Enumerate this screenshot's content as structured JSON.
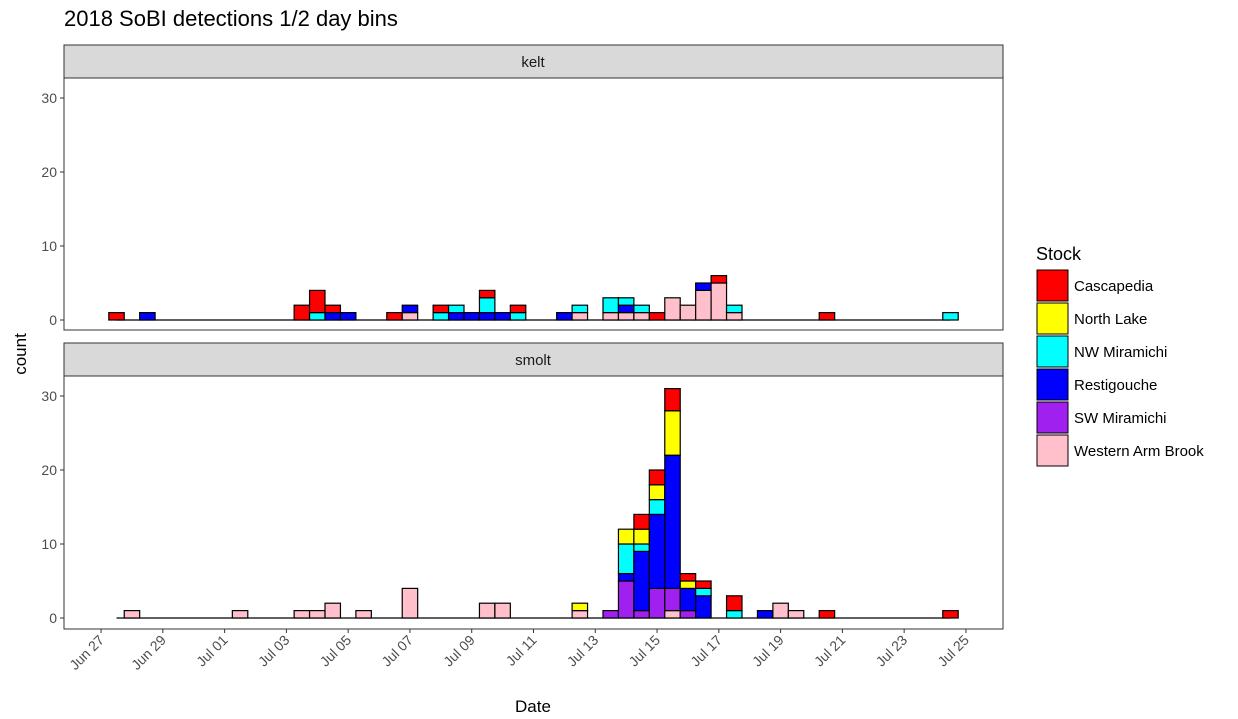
{
  "chart_data": {
    "type": "bar",
    "stacked": true,
    "title": "2018 SoBI detections 1/2 day bins",
    "xlabel": "Date",
    "ylabel": "count",
    "ylim": [
      0,
      32
    ],
    "y_ticks": [
      0,
      10,
      20,
      30
    ],
    "x_ticks": [
      "Jun 27",
      "Jun 29",
      "Jul 01",
      "Jul 03",
      "Jul 05",
      "Jul 07",
      "Jul 09",
      "Jul 11",
      "Jul 13",
      "Jul 15",
      "Jul 17",
      "Jul 19",
      "Jul 21",
      "Jul 23",
      "Jul 25"
    ],
    "x_tick_days": [
      0,
      2,
      4,
      6,
      8,
      10,
      12,
      14,
      16,
      18,
      20,
      22,
      24,
      26,
      28
    ],
    "bin_width_days": 0.5,
    "x_day0": "Jun 27",
    "x_range_days": [
      -1.2,
      29.2
    ],
    "grid": false,
    "legend": {
      "title": "Stock",
      "placement": "right",
      "entries": [
        "Cascapedia",
        "North Lake",
        "NW Miramichi",
        "Restigouche",
        "SW Miramichi",
        "Western Arm Brook"
      ]
    },
    "colors": {
      "Cascapedia": "#ff0000",
      "North Lake": "#ffff00",
      "NW Miramichi": "#00ffff",
      "Restigouche": "#0000ff",
      "SW Miramichi": "#a020f0",
      "Western Arm Brook": "#ffc0cb"
    },
    "stack_order": [
      "Western Arm Brook",
      "SW Miramichi",
      "Restigouche",
      "NW Miramichi",
      "North Lake",
      "Cascapedia"
    ],
    "panels": [
      {
        "label": "kelt",
        "bins": [
          {
            "x": 0.5,
            "counts": {
              "Cascapedia": 1
            }
          },
          {
            "x": 1.5,
            "counts": {
              "Restigouche": 1
            }
          },
          {
            "x": 6.5,
            "counts": {
              "Cascapedia": 2
            }
          },
          {
            "x": 7.0,
            "counts": {
              "NW Miramichi": 1,
              "Cascapedia": 3
            }
          },
          {
            "x": 7.5,
            "counts": {
              "Restigouche": 1,
              "Cascapedia": 1
            }
          },
          {
            "x": 8.0,
            "counts": {
              "Restigouche": 1
            }
          },
          {
            "x": 9.5,
            "counts": {
              "Cascapedia": 1
            }
          },
          {
            "x": 10.0,
            "counts": {
              "Western Arm Brook": 1,
              "Restigouche": 1
            }
          },
          {
            "x": 11.0,
            "counts": {
              "NW Miramichi": 1,
              "Cascapedia": 1
            }
          },
          {
            "x": 11.5,
            "counts": {
              "Restigouche": 1,
              "NW Miramichi": 1
            }
          },
          {
            "x": 12.0,
            "counts": {
              "Restigouche": 1
            }
          },
          {
            "x": 12.5,
            "counts": {
              "Restigouche": 1,
              "NW Miramichi": 2,
              "Cascapedia": 1
            }
          },
          {
            "x": 13.0,
            "counts": {
              "Restigouche": 1
            }
          },
          {
            "x": 13.5,
            "counts": {
              "NW Miramichi": 1,
              "Cascapedia": 1
            }
          },
          {
            "x": 15.0,
            "counts": {
              "Restigouche": 1
            }
          },
          {
            "x": 15.5,
            "counts": {
              "Western Arm Brook": 1,
              "NW Miramichi": 1
            }
          },
          {
            "x": 16.5,
            "counts": {
              "Western Arm Brook": 1,
              "NW Miramichi": 2
            }
          },
          {
            "x": 17.0,
            "counts": {
              "Western Arm Brook": 1,
              "Restigouche": 1,
              "NW Miramichi": 1
            }
          },
          {
            "x": 17.5,
            "counts": {
              "Western Arm Brook": 1,
              "NW Miramichi": 1
            }
          },
          {
            "x": 18.0,
            "counts": {
              "Cascapedia": 1
            }
          },
          {
            "x": 18.5,
            "counts": {
              "Western Arm Brook": 3
            }
          },
          {
            "x": 19.0,
            "counts": {
              "Western Arm Brook": 2
            }
          },
          {
            "x": 19.5,
            "counts": {
              "Western Arm Brook": 4,
              "Restigouche": 1
            }
          },
          {
            "x": 20.0,
            "counts": {
              "Western Arm Brook": 5,
              "Cascapedia": 1
            }
          },
          {
            "x": 20.5,
            "counts": {
              "Western Arm Brook": 1,
              "NW Miramichi": 1
            }
          },
          {
            "x": 23.5,
            "counts": {
              "Cascapedia": 1
            }
          },
          {
            "x": 27.5,
            "counts": {
              "NW Miramichi": 1
            }
          }
        ]
      },
      {
        "label": "smolt",
        "bins": [
          {
            "x": 1.0,
            "counts": {
              "Western Arm Brook": 1
            }
          },
          {
            "x": 4.5,
            "counts": {
              "Western Arm Brook": 1
            }
          },
          {
            "x": 6.5,
            "counts": {
              "Western Arm Brook": 1
            }
          },
          {
            "x": 7.0,
            "counts": {
              "Western Arm Brook": 1
            }
          },
          {
            "x": 7.5,
            "counts": {
              "Western Arm Brook": 2
            }
          },
          {
            "x": 8.5,
            "counts": {
              "Western Arm Brook": 1
            }
          },
          {
            "x": 10.0,
            "counts": {
              "Western Arm Brook": 4
            }
          },
          {
            "x": 12.5,
            "counts": {
              "Western Arm Brook": 2
            }
          },
          {
            "x": 13.0,
            "counts": {
              "Western Arm Brook": 2
            }
          },
          {
            "x": 15.5,
            "counts": {
              "Western Arm Brook": 1,
              "North Lake": 1
            }
          },
          {
            "x": 16.5,
            "counts": {
              "SW Miramichi": 1
            }
          },
          {
            "x": 17.0,
            "counts": {
              "SW Miramichi": 5,
              "Restigouche": 1,
              "NW Miramichi": 4,
              "North Lake": 2
            }
          },
          {
            "x": 17.5,
            "counts": {
              "SW Miramichi": 1,
              "Restigouche": 8,
              "NW Miramichi": 1,
              "North Lake": 2,
              "Cascapedia": 2
            }
          },
          {
            "x": 18.0,
            "counts": {
              "SW Miramichi": 4,
              "Restigouche": 10,
              "NW Miramichi": 2,
              "North Lake": 2,
              "Cascapedia": 2
            }
          },
          {
            "x": 18.5,
            "counts": {
              "Western Arm Brook": 1,
              "SW Miramichi": 3,
              "Restigouche": 18,
              "North Lake": 6,
              "Cascapedia": 3
            }
          },
          {
            "x": 19.0,
            "counts": {
              "SW Miramichi": 1,
              "Restigouche": 3,
              "North Lake": 1,
              "Cascapedia": 1
            }
          },
          {
            "x": 19.5,
            "counts": {
              "Restigouche": 3,
              "NW Miramichi": 1,
              "Cascapedia": 1
            }
          },
          {
            "x": 20.5,
            "counts": {
              "NW Miramichi": 1,
              "Cascapedia": 2
            }
          },
          {
            "x": 21.5,
            "counts": {
              "Restigouche": 1
            }
          },
          {
            "x": 22.0,
            "counts": {
              "Western Arm Brook": 2
            }
          },
          {
            "x": 22.5,
            "counts": {
              "Western Arm Brook": 1
            }
          },
          {
            "x": 23.5,
            "counts": {
              "Cascapedia": 1
            }
          },
          {
            "x": 27.5,
            "counts": {
              "Cascapedia": 1
            }
          }
        ]
      }
    ]
  }
}
